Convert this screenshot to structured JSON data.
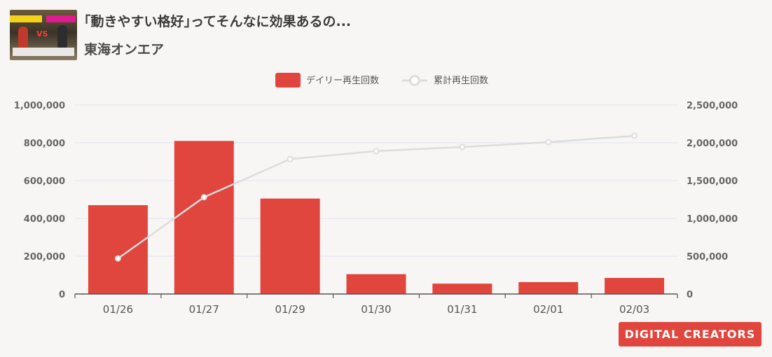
{
  "header": {
    "title": "｢動きやすい格好｣ってそんなに効果あるの...",
    "channel": "東海オンエア"
  },
  "legend": {
    "daily_label": "デイリー再生回数",
    "cumulative_label": "累計再生回数"
  },
  "brand": {
    "text": "DIGITAL CREATORS"
  },
  "colors": {
    "bar": "#e0463d",
    "line": "#dcdcdc",
    "grid": "#dce4f2",
    "background": "#f8f6f5"
  },
  "chart_data": {
    "type": "bar",
    "categories": [
      "01/26",
      "01/27",
      "01/29",
      "01/30",
      "01/31",
      "02/01",
      "02/03"
    ],
    "series": [
      {
        "name": "デイリー再生回数",
        "type": "bar",
        "axis": "left",
        "values": [
          470000,
          810000,
          505000,
          105000,
          55000,
          63000,
          85000
        ]
      },
      {
        "name": "累計再生回数",
        "type": "line",
        "axis": "right",
        "values": [
          470000,
          1280000,
          1785000,
          1890000,
          1945000,
          2008000,
          2093000
        ]
      }
    ],
    "y_left": {
      "min": 0,
      "max": 1000000,
      "ticks": [
        "0",
        "200,000",
        "400,000",
        "600,000",
        "800,000",
        "1,000,000"
      ]
    },
    "y_right": {
      "min": 0,
      "max": 2500000,
      "ticks": [
        "0",
        "500,000",
        "1,000,000",
        "1,500,000",
        "2,000,000",
        "2,500,000"
      ]
    },
    "grid": true,
    "legend_position": "top-center"
  }
}
